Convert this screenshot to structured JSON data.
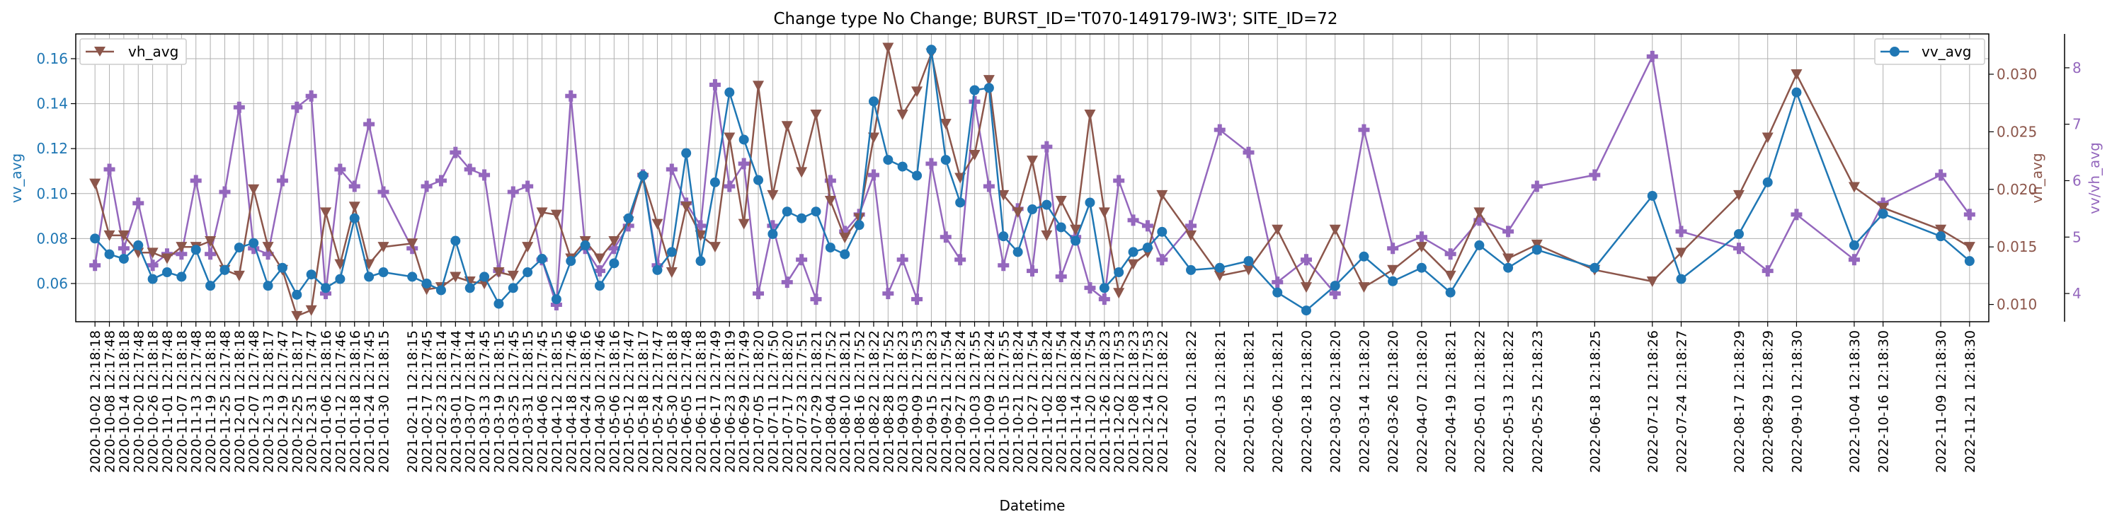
{
  "chart_data": {
    "type": "line",
    "title": "Change type No Change; BURST_ID='T070-149179-IW3'; SITE_ID=72",
    "xlabel": "Datetime",
    "x_tick_labels": [
      "2020-10-02 12:18:18",
      "2020-10-08 12:17:48",
      "2020-10-14 12:18:18",
      "2020-10-20 12:17:48",
      "2020-10-26 12:18:18",
      "2020-11-01 12:17:48",
      "2020-11-07 12:18:18",
      "2020-11-13 12:17:48",
      "2020-11-19 12:18:18",
      "2020-11-25 12:17:48",
      "2020-12-01 12:18:18",
      "2020-12-07 12:17:48",
      "2020-12-13 12:18:17",
      "2020-12-19 12:17:47",
      "2020-12-25 12:18:17",
      "2020-12-31 12:17:47",
      "2021-01-06 12:18:16",
      "2021-01-12 12:17:46",
      "2021-01-18 12:18:16",
      "2021-01-24 12:17:45",
      "2021-01-30 12:18:15",
      "2021-02-11 12:18:15",
      "2021-02-17 12:17:45",
      "2021-02-23 12:18:14",
      "2021-03-01 12:17:44",
      "2021-03-07 12:18:14",
      "2021-03-13 12:17:45",
      "2021-03-19 12:18:15",
      "2021-03-25 12:17:45",
      "2021-03-31 12:18:15",
      "2021-04-06 12:17:45",
      "2021-04-12 12:18:15",
      "2021-04-18 12:17:46",
      "2021-04-24 12:18:16",
      "2021-04-30 12:17:46",
      "2021-05-06 12:18:16",
      "2021-05-12 12:17:47",
      "2021-05-18 12:18:17",
      "2021-05-24 12:17:47",
      "2021-05-30 12:18:18",
      "2021-06-05 12:17:48",
      "2021-06-11 12:18:18",
      "2021-06-17 12:17:49",
      "2021-06-23 12:18:19",
      "2021-06-29 12:17:49",
      "2021-07-05 12:18:20",
      "2021-07-11 12:17:50",
      "2021-07-17 12:18:20",
      "2021-07-23 12:17:51",
      "2021-07-29 12:18:21",
      "2021-08-04 12:17:52",
      "2021-08-10 12:18:21",
      "2021-08-16 12:17:52",
      "2021-08-22 12:18:22",
      "2021-08-28 12:17:52",
      "2021-09-03 12:18:23",
      "2021-09-09 12:17:53",
      "2021-09-15 12:18:23",
      "2021-09-21 12:17:54",
      "2021-09-27 12:18:24",
      "2021-10-03 12:17:55",
      "2021-10-09 12:18:24",
      "2021-10-15 12:17:55",
      "2021-10-21 12:18:24",
      "2021-10-27 12:17:54",
      "2021-11-02 12:18:24",
      "2021-11-08 12:17:54",
      "2021-11-14 12:18:24",
      "2021-11-20 12:17:54",
      "2021-11-26 12:18:23",
      "2021-12-02 12:17:53",
      "2021-12-08 12:18:23",
      "2021-12-14 12:17:53",
      "2021-12-20 12:18:22",
      "2022-01-01 12:18:22",
      "2022-01-13 12:18:21",
      "2022-01-25 12:18:21",
      "2022-02-06 12:18:21",
      "2022-02-18 12:18:20",
      "2022-03-02 12:18:20",
      "2022-03-14 12:18:20",
      "2022-03-26 12:18:20",
      "2022-04-07 12:18:20",
      "2022-04-19 12:18:21",
      "2022-05-01 12:18:22",
      "2022-05-13 12:18:22",
      "2022-05-25 12:18:23",
      "2022-06-18 12:18:25",
      "2022-07-12 12:18:26",
      "2022-07-24 12:18:27",
      "2022-08-17 12:18:29",
      "2022-08-29 12:18:29",
      "2022-09-10 12:18:30",
      "2022-10-04 12:18:30",
      "2022-10-16 12:18:30",
      "2022-11-09 12:18:30",
      "2022-11-21 12:18:30"
    ],
    "x": [
      "2020-10-02",
      "2020-10-08",
      "2020-10-14",
      "2020-10-20",
      "2020-10-26",
      "2020-11-01",
      "2020-11-07",
      "2020-11-13",
      "2020-11-19",
      "2020-11-25",
      "2020-12-01",
      "2020-12-07",
      "2020-12-13",
      "2020-12-19",
      "2020-12-25",
      "2020-12-31",
      "2021-01-06",
      "2021-01-12",
      "2021-01-18",
      "2021-01-24",
      "2021-01-30",
      "2021-02-11",
      "2021-02-17",
      "2021-02-23",
      "2021-03-01",
      "2021-03-07",
      "2021-03-13",
      "2021-03-19",
      "2021-03-25",
      "2021-03-31",
      "2021-04-06",
      "2021-04-12",
      "2021-04-18",
      "2021-04-24",
      "2021-04-30",
      "2021-05-06",
      "2021-05-12",
      "2021-05-18",
      "2021-05-24",
      "2021-05-30",
      "2021-06-05",
      "2021-06-11",
      "2021-06-17",
      "2021-06-23",
      "2021-06-29",
      "2021-07-05",
      "2021-07-11",
      "2021-07-17",
      "2021-07-23",
      "2021-07-29",
      "2021-08-04",
      "2021-08-10",
      "2021-08-16",
      "2021-08-22",
      "2021-08-28",
      "2021-09-03",
      "2021-09-09",
      "2021-09-15",
      "2021-09-21",
      "2021-09-27",
      "2021-10-03",
      "2021-10-09",
      "2021-10-15",
      "2021-10-21",
      "2021-10-27",
      "2021-11-02",
      "2021-11-08",
      "2021-11-14",
      "2021-11-20",
      "2021-11-26",
      "2021-12-02",
      "2021-12-08",
      "2021-12-14",
      "2021-12-20",
      "2022-01-01",
      "2022-01-13",
      "2022-01-25",
      "2022-02-06",
      "2022-02-18",
      "2022-03-02",
      "2022-03-14",
      "2022-03-26",
      "2022-04-07",
      "2022-04-19",
      "2022-05-01",
      "2022-05-13",
      "2022-05-25",
      "2022-06-18",
      "2022-07-12",
      "2022-07-24",
      "2022-08-17",
      "2022-08-29",
      "2022-09-10",
      "2022-10-04",
      "2022-10-16",
      "2022-11-09",
      "2022-11-21"
    ],
    "axes": {
      "vv": {
        "label": "vv_avg",
        "ticks": [
          0.06,
          0.08,
          0.1,
          0.12,
          0.14,
          0.16
        ],
        "tick_labels": [
          "0.06",
          "0.08",
          "0.10",
          "0.12",
          "0.14",
          "0.16"
        ],
        "ylim": [
          0.043,
          0.171
        ],
        "color": "#1f77b4"
      },
      "vh": {
        "label": "vh_avg",
        "ticks": [
          0.01,
          0.015,
          0.02,
          0.025,
          0.03
        ],
        "tick_labels": [
          "0.010",
          "0.015",
          "0.020",
          "0.025",
          "0.030"
        ],
        "ylim": [
          0.0085,
          0.0335
        ],
        "color": "#8c564b"
      },
      "ratio": {
        "label": "vv/vh_avg",
        "ticks": [
          4,
          5,
          6,
          7,
          8
        ],
        "tick_labels": [
          "4",
          "5",
          "6",
          "7",
          "8"
        ],
        "ylim": [
          3.5,
          8.6
        ],
        "color": "#9467bd"
      }
    },
    "grid": true,
    "series": [
      {
        "name": "vv_avg",
        "axis": "vv",
        "color": "#1f77b4",
        "marker": "circle",
        "legend": "top-right",
        "values": [
          0.08,
          0.073,
          0.071,
          0.077,
          0.062,
          0.065,
          0.063,
          0.075,
          0.059,
          0.066,
          0.076,
          0.078,
          0.059,
          0.067,
          0.055,
          0.064,
          0.058,
          0.062,
          0.089,
          0.063,
          0.065,
          0.063,
          0.06,
          0.057,
          0.079,
          0.058,
          0.063,
          0.051,
          0.058,
          0.065,
          0.071,
          0.053,
          0.07,
          0.077,
          0.059,
          0.069,
          0.089,
          0.108,
          0.066,
          0.074,
          0.118,
          0.07,
          0.105,
          0.145,
          0.124,
          0.106,
          0.082,
          0.092,
          0.089,
          0.092,
          0.076,
          0.073,
          0.086,
          0.141,
          0.115,
          0.112,
          0.108,
          0.164,
          0.115,
          0.096,
          0.146,
          0.147,
          0.081,
          0.074,
          0.093,
          0.095,
          0.085,
          0.079,
          0.096,
          0.058,
          0.065,
          0.074,
          0.076,
          0.083,
          0.066,
          0.067,
          0.07,
          0.056,
          0.048,
          0.059,
          0.072,
          0.061,
          0.067,
          0.056,
          0.077,
          0.067,
          0.075,
          0.067,
          0.099,
          0.062,
          0.082,
          0.105,
          0.145,
          0.077,
          0.091,
          0.081,
          0.07
        ]
      },
      {
        "name": "vh_avg",
        "axis": "vh",
        "color": "#8c564b",
        "marker": "triangle-down",
        "legend": "top-left",
        "values": [
          0.0205,
          0.016,
          0.016,
          0.0145,
          0.0145,
          0.014,
          0.015,
          0.015,
          0.0155,
          0.013,
          0.0125,
          0.02,
          0.015,
          0.013,
          0.009,
          0.0095,
          0.018,
          0.0135,
          0.0185,
          0.0135,
          0.015,
          0.0153,
          0.0113,
          0.0115,
          0.0124,
          0.012,
          0.0118,
          0.0128,
          0.0125,
          0.015,
          0.018,
          0.0178,
          0.014,
          0.0155,
          0.014,
          0.0155,
          0.0172,
          0.021,
          0.017,
          0.0128,
          0.0185,
          0.016,
          0.015,
          0.0245,
          0.017,
          0.029,
          0.0195,
          0.0255,
          0.0215,
          0.0265,
          0.019,
          0.0158,
          0.0175,
          0.0245,
          0.0323,
          0.0265,
          0.0285,
          0.0318,
          0.0257,
          0.021,
          0.023,
          0.0295,
          0.0195,
          0.018,
          0.0225,
          0.016,
          0.019,
          0.0165,
          0.0265,
          0.018,
          0.011,
          0.0135,
          0.0145,
          0.0195,
          0.016,
          0.0125,
          0.013,
          0.0165,
          0.0115,
          0.0165,
          0.0115,
          0.013,
          0.015,
          0.0125,
          0.018,
          0.014,
          0.0152,
          0.013,
          0.012,
          0.0145,
          0.0195,
          0.0245,
          0.03,
          0.0202,
          0.0184,
          0.0165,
          0.015
        ]
      },
      {
        "name": "vv/vh_avg",
        "axis": "ratio",
        "color": "#9467bd",
        "marker": "plus",
        "legend": "",
        "values": [
          4.5,
          6.2,
          4.8,
          5.6,
          4.5,
          4.7,
          4.7,
          6.0,
          4.7,
          5.8,
          7.3,
          4.8,
          4.7,
          6.0,
          7.3,
          7.5,
          4.0,
          6.2,
          5.9,
          7.0,
          5.8,
          4.8,
          5.9,
          6.0,
          6.5,
          6.2,
          6.1,
          4.4,
          5.8,
          5.9,
          4.6,
          3.8,
          7.5,
          4.8,
          4.4,
          4.8,
          5.2,
          6.1,
          4.5,
          6.2,
          5.6,
          5.2,
          7.7,
          5.9,
          6.3,
          4.0,
          5.2,
          4.2,
          4.6,
          3.9,
          6.0,
          5.1,
          5.4,
          6.1,
          4.0,
          4.6,
          3.9,
          6.3,
          5.0,
          4.6,
          7.4,
          5.9,
          4.5,
          5.5,
          4.4,
          6.6,
          4.3,
          5.0,
          4.1,
          3.9,
          6.0,
          5.3,
          5.2,
          4.6,
          5.2,
          6.9,
          6.5,
          4.2,
          4.6,
          4.0,
          6.9,
          4.8,
          5.0,
          4.7,
          5.3,
          5.1,
          5.9,
          6.1,
          8.2,
          5.1,
          4.8,
          4.4,
          5.4,
          4.6,
          5.6,
          6.1,
          5.4
        ]
      }
    ]
  }
}
